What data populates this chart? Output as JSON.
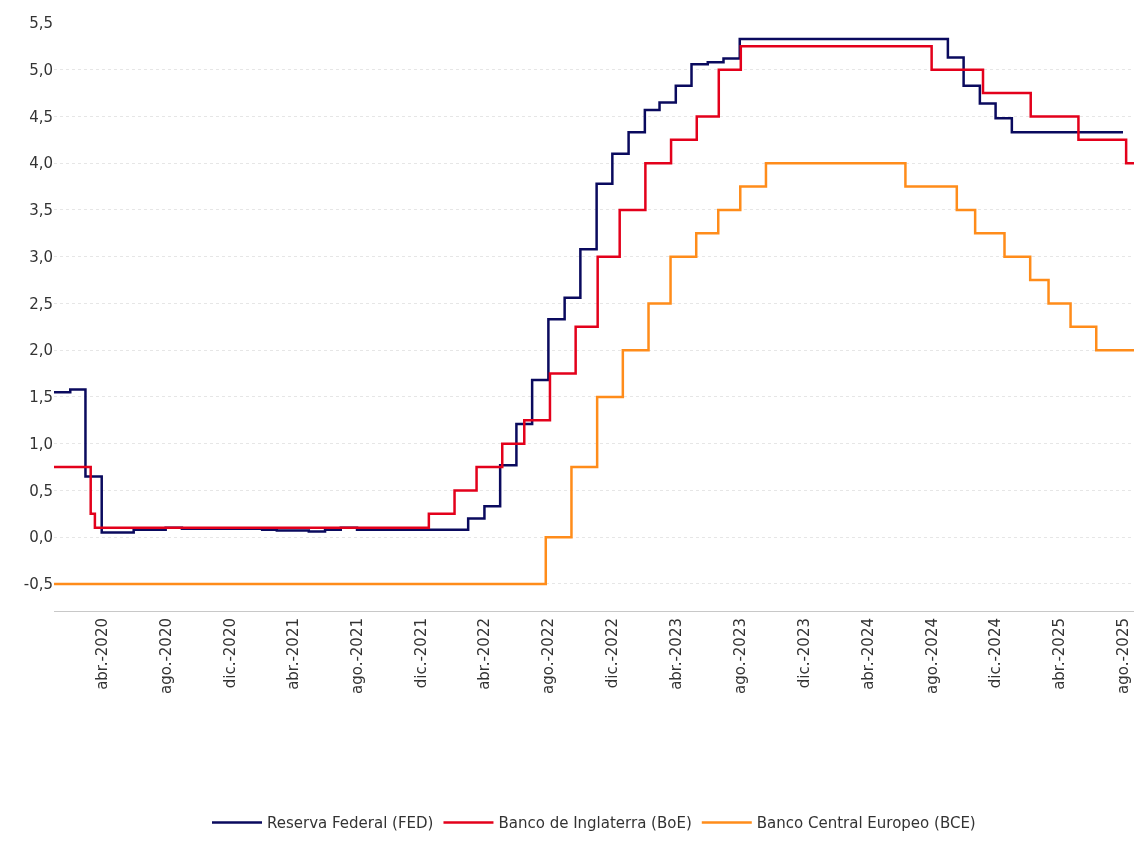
{
  "chart_data": {
    "type": "step",
    "xlim": [
      "2020-01-01",
      "2025-08-22"
    ],
    "ylim": [
      -0.79,
      5.5
    ],
    "xticks": [
      {
        "value": "2020-04-01",
        "label": "abr.-2020"
      },
      {
        "value": "2020-08-01",
        "label": "ago.-2020"
      },
      {
        "value": "2020-12-01",
        "label": "dic.-2020"
      },
      {
        "value": "2021-04-01",
        "label": "abr.-2021"
      },
      {
        "value": "2021-08-01",
        "label": "ago.-2021"
      },
      {
        "value": "2021-12-01",
        "label": "dic.-2021"
      },
      {
        "value": "2022-04-01",
        "label": "abr.-2022"
      },
      {
        "value": "2022-08-01",
        "label": "ago.-2022"
      },
      {
        "value": "2022-12-01",
        "label": "dic.-2022"
      },
      {
        "value": "2023-04-01",
        "label": "abr.-2023"
      },
      {
        "value": "2023-08-01",
        "label": "ago.-2023"
      },
      {
        "value": "2023-12-01",
        "label": "dic.-2023"
      },
      {
        "value": "2024-04-01",
        "label": "abr.-2024"
      },
      {
        "value": "2024-08-01",
        "label": "ago.-2024"
      },
      {
        "value": "2024-12-01",
        "label": "dic.-2024"
      },
      {
        "value": "2025-04-01",
        "label": "abr.-2025"
      },
      {
        "value": "2025-08-01",
        "label": "ago.-2025"
      }
    ],
    "yticks": [
      {
        "value": -0.5,
        "label": "-0,5"
      },
      {
        "value": 0,
        "label": "0,0"
      },
      {
        "value": 0.5,
        "label": "0,5"
      },
      {
        "value": 1,
        "label": "1,0"
      },
      {
        "value": 1.5,
        "label": "1,5"
      },
      {
        "value": 2,
        "label": "2,0"
      },
      {
        "value": 2.5,
        "label": "2,5"
      },
      {
        "value": 3,
        "label": "3,0"
      },
      {
        "value": 3.5,
        "label": "3,5"
      },
      {
        "value": 4,
        "label": "4,0"
      },
      {
        "value": 4.5,
        "label": "4,5"
      },
      {
        "value": 5,
        "label": "5,0"
      },
      {
        "value": 5.5,
        "label": "5,5"
      }
    ],
    "grid": "y",
    "legend": "bottom",
    "marker": "none",
    "line_style": "solid",
    "series": [
      {
        "name": "Reserva Federal (FED)",
        "color": "#0a0a5e",
        "x": [
          "2020-01-01",
          "2020-02-01",
          "2020-03-01",
          "2020-04-01",
          "2020-06-01",
          "2020-08-01",
          "2020-09-01",
          "2021-02-01",
          "2021-03-01",
          "2021-05-01",
          "2021-06-01",
          "2021-07-01",
          "2021-08-01",
          "2022-03-01",
          "2022-04-01",
          "2022-05-01",
          "2022-06-01",
          "2022-07-01",
          "2022-08-01",
          "2022-09-01",
          "2022-10-01",
          "2022-11-01",
          "2022-12-01",
          "2023-01-01",
          "2023-02-01",
          "2023-03-01",
          "2023-04-01",
          "2023-05-01",
          "2023-06-01",
          "2023-07-01",
          "2023-08-01",
          "2024-09-01",
          "2024-10-01",
          "2024-11-01",
          "2024-12-01",
          "2025-01-01",
          "2025-08-01"
        ],
        "values": [
          1.55,
          1.58,
          0.65,
          0.05,
          0.08,
          0.1,
          0.09,
          0.08,
          0.07,
          0.06,
          0.08,
          0.1,
          0.08,
          0.2,
          0.33,
          0.77,
          1.21,
          1.68,
          2.33,
          2.56,
          3.08,
          3.78,
          4.1,
          4.33,
          4.57,
          4.65,
          4.83,
          5.06,
          5.08,
          5.12,
          5.33,
          5.13,
          4.83,
          4.64,
          4.48,
          4.33,
          4.33
        ]
      },
      {
        "name": "Banco de Inglaterra (BoE)",
        "color": "#e3001b",
        "x": [
          "2020-01-01",
          "2020-03-11",
          "2020-03-19",
          "2021-12-16",
          "2022-02-03",
          "2022-03-17",
          "2022-05-05",
          "2022-06-16",
          "2022-08-04",
          "2022-09-22",
          "2022-11-03",
          "2022-12-15",
          "2023-02-02",
          "2023-03-23",
          "2023-05-11",
          "2023-06-22",
          "2023-08-03",
          "2024-08-01",
          "2024-11-07",
          "2025-02-06",
          "2025-05-08",
          "2025-08-07",
          "2025-08-22"
        ],
        "values": [
          0.75,
          0.25,
          0.1,
          0.25,
          0.5,
          0.75,
          1.0,
          1.25,
          1.75,
          2.25,
          3.0,
          3.5,
          4.0,
          4.25,
          4.5,
          5.0,
          5.25,
          5.0,
          4.75,
          4.5,
          4.25,
          4.0,
          4.0
        ]
      },
      {
        "name": "Banco Central Europeo (BCE)",
        "color": "#ff8c1a",
        "x": [
          "2020-01-01",
          "2022-07-27",
          "2022-09-14",
          "2022-11-02",
          "2022-12-21",
          "2023-02-08",
          "2023-03-22",
          "2023-05-10",
          "2023-06-21",
          "2023-08-02",
          "2023-09-20",
          "2024-06-12",
          "2024-09-18",
          "2024-10-23",
          "2024-12-18",
          "2025-02-05",
          "2025-03-12",
          "2025-04-23",
          "2025-06-11",
          "2025-08-22"
        ],
        "values": [
          -0.5,
          0.0,
          0.75,
          1.5,
          2.0,
          2.5,
          3.0,
          3.25,
          3.5,
          3.75,
          4.0,
          3.75,
          3.5,
          3.25,
          3.0,
          2.75,
          2.5,
          2.25,
          2.0,
          2.0
        ]
      }
    ]
  }
}
